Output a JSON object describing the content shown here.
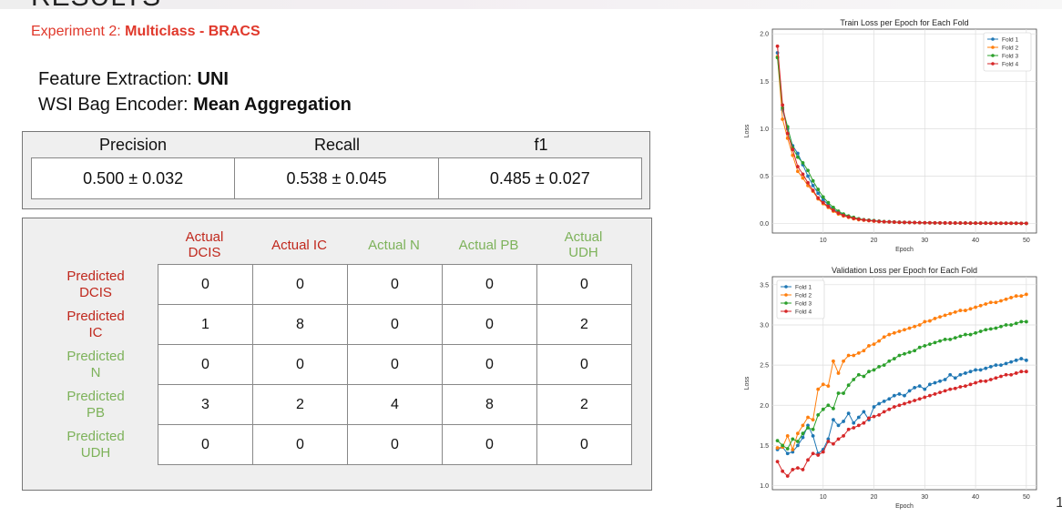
{
  "header": {
    "title": "RESULTS",
    "subtitle_prefix": "Experiment 2: ",
    "subtitle_bold": "Multiclass - BRACS"
  },
  "spec": {
    "feature_label": "Feature Extraction: ",
    "feature_value": "UNI",
    "encoder_label": "WSI Bag Encoder: ",
    "encoder_value": "Mean Aggregation"
  },
  "metrics": {
    "headers": [
      "Precision",
      "Recall",
      "f1"
    ],
    "values": [
      "0.500 ± 0.032",
      "0.538 ± 0.045",
      "0.485 ± 0.027"
    ]
  },
  "confusion": {
    "col_labels": [
      "Actual\nDCIS",
      "Actual IC",
      "Actual N",
      "Actual PB",
      "Actual\nUDH"
    ],
    "row_labels": [
      "Predicted\nDCIS",
      "Predicted\nIC",
      "Predicted\nN",
      "Predicted\nPB",
      "Predicted\nUDH"
    ],
    "label_colors": [
      "#c0281d",
      "#c0281d",
      "#7db25a",
      "#7db25a",
      "#7db25a"
    ],
    "matrix": [
      [
        0,
        0,
        0,
        0,
        0
      ],
      [
        1,
        8,
        0,
        0,
        2
      ],
      [
        0,
        0,
        0,
        0,
        0
      ],
      [
        3,
        2,
        4,
        8,
        2
      ],
      [
        0,
        0,
        0,
        0,
        0
      ]
    ]
  },
  "chart_data": [
    {
      "type": "line",
      "title": "Train Loss per Epoch for Each Fold",
      "xlabel": "Epoch",
      "ylabel": "Loss",
      "xlim": [
        0,
        52
      ],
      "ylim": [
        -0.1,
        2.05
      ],
      "xticks": [
        10,
        20,
        30,
        40,
        50
      ],
      "yticks": [
        0.0,
        0.5,
        1.0,
        1.5,
        2.0
      ],
      "grid": true,
      "legend": "top-right",
      "series": [
        {
          "name": "Fold 1",
          "color": "#1f77b4",
          "values": [
            1.8,
            1.2,
            1.0,
            0.82,
            0.74,
            0.62,
            0.5,
            0.4,
            0.32,
            0.25,
            0.2,
            0.15,
            0.12,
            0.09,
            0.07,
            0.06,
            0.05,
            0.04,
            0.035,
            0.03,
            0.025,
            0.02,
            0.018,
            0.016,
            0.014,
            0.012,
            0.011,
            0.01,
            0.009,
            0.008,
            0.008,
            0.007,
            0.007,
            0.006,
            0.006,
            0.005,
            0.005,
            0.005,
            0.004,
            0.004,
            0.004,
            0.004,
            0.003,
            0.003,
            0.003,
            0.003,
            0.003,
            0.003,
            0.002,
            0.002
          ]
        },
        {
          "name": "Fold 2",
          "color": "#ff7f0e",
          "values": [
            1.76,
            1.1,
            0.9,
            0.72,
            0.55,
            0.48,
            0.4,
            0.34,
            0.26,
            0.21,
            0.17,
            0.13,
            0.1,
            0.08,
            0.065,
            0.05,
            0.04,
            0.035,
            0.03,
            0.025,
            0.02,
            0.018,
            0.016,
            0.014,
            0.012,
            0.011,
            0.01,
            0.009,
            0.008,
            0.008,
            0.007,
            0.007,
            0.006,
            0.006,
            0.005,
            0.005,
            0.005,
            0.004,
            0.004,
            0.004,
            0.004,
            0.003,
            0.003,
            0.003,
            0.003,
            0.003,
            0.003,
            0.002,
            0.002,
            0.002
          ]
        },
        {
          "name": "Fold 3",
          "color": "#2ca02c",
          "values": [
            1.75,
            1.22,
            1.02,
            0.8,
            0.7,
            0.64,
            0.56,
            0.45,
            0.36,
            0.28,
            0.22,
            0.17,
            0.13,
            0.1,
            0.08,
            0.065,
            0.05,
            0.04,
            0.035,
            0.03,
            0.025,
            0.02,
            0.018,
            0.016,
            0.014,
            0.012,
            0.011,
            0.01,
            0.009,
            0.008,
            0.008,
            0.007,
            0.007,
            0.006,
            0.006,
            0.005,
            0.005,
            0.005,
            0.004,
            0.004,
            0.004,
            0.004,
            0.003,
            0.003,
            0.003,
            0.003,
            0.003,
            0.003,
            0.002,
            0.002
          ]
        },
        {
          "name": "Fold 4",
          "color": "#d62728",
          "values": [
            1.87,
            1.25,
            0.95,
            0.78,
            0.6,
            0.52,
            0.43,
            0.35,
            0.27,
            0.22,
            0.18,
            0.14,
            0.11,
            0.085,
            0.07,
            0.055,
            0.045,
            0.038,
            0.032,
            0.027,
            0.022,
            0.019,
            0.017,
            0.015,
            0.013,
            0.012,
            0.011,
            0.01,
            0.009,
            0.008,
            0.008,
            0.007,
            0.007,
            0.006,
            0.006,
            0.005,
            0.005,
            0.005,
            0.004,
            0.004,
            0.004,
            0.004,
            0.003,
            0.003,
            0.003,
            0.003,
            0.003,
            0.003,
            0.002,
            0.002
          ]
        }
      ]
    },
    {
      "type": "line",
      "title": "Validation Loss per Epoch for Each Fold",
      "xlabel": "Epoch",
      "ylabel": "Loss",
      "xlim": [
        0,
        52
      ],
      "ylim": [
        0.95,
        3.6
      ],
      "xticks": [
        10,
        20,
        30,
        40,
        50
      ],
      "yticks": [
        1.0,
        1.5,
        2.0,
        2.5,
        3.0,
        3.5
      ],
      "grid": true,
      "legend": "top-left",
      "series": [
        {
          "name": "Fold 1",
          "color": "#1f77b4",
          "values": [
            1.45,
            1.48,
            1.4,
            1.42,
            1.5,
            1.6,
            1.75,
            1.62,
            1.4,
            1.45,
            1.58,
            1.82,
            1.75,
            1.8,
            1.9,
            1.78,
            1.85,
            1.92,
            1.82,
            1.98,
            2.02,
            2.05,
            2.08,
            2.12,
            2.14,
            2.12,
            2.18,
            2.22,
            2.24,
            2.2,
            2.26,
            2.28,
            2.3,
            2.32,
            2.38,
            2.34,
            2.38,
            2.4,
            2.42,
            2.44,
            2.44,
            2.46,
            2.48,
            2.5,
            2.5,
            2.52,
            2.54,
            2.56,
            2.58,
            2.56
          ]
        },
        {
          "name": "Fold 2",
          "color": "#ff7f0e",
          "values": [
            1.47,
            1.48,
            1.62,
            1.45,
            1.65,
            1.75,
            1.85,
            1.82,
            2.2,
            2.26,
            2.24,
            2.55,
            2.4,
            2.55,
            2.62,
            2.62,
            2.65,
            2.68,
            2.74,
            2.76,
            2.8,
            2.85,
            2.88,
            2.9,
            2.92,
            2.94,
            2.96,
            2.98,
            3.0,
            3.04,
            3.05,
            3.08,
            3.1,
            3.12,
            3.14,
            3.16,
            3.18,
            3.18,
            3.2,
            3.22,
            3.24,
            3.26,
            3.28,
            3.28,
            3.3,
            3.32,
            3.34,
            3.36,
            3.36,
            3.38
          ]
        },
        {
          "name": "Fold 3",
          "color": "#2ca02c",
          "values": [
            1.56,
            1.5,
            1.46,
            1.58,
            1.55,
            1.65,
            1.72,
            1.7,
            1.88,
            1.95,
            2.0,
            1.96,
            2.15,
            2.15,
            2.25,
            2.32,
            2.38,
            2.36,
            2.42,
            2.44,
            2.48,
            2.5,
            2.55,
            2.58,
            2.62,
            2.64,
            2.66,
            2.68,
            2.72,
            2.74,
            2.76,
            2.78,
            2.8,
            2.82,
            2.82,
            2.84,
            2.86,
            2.88,
            2.88,
            2.9,
            2.92,
            2.94,
            2.95,
            2.96,
            2.98,
            3.0,
            3.0,
            3.02,
            3.04,
            3.04
          ]
        },
        {
          "name": "Fold 4",
          "color": "#d62728",
          "values": [
            1.3,
            1.18,
            1.12,
            1.2,
            1.22,
            1.2,
            1.32,
            1.4,
            1.38,
            1.42,
            1.55,
            1.52,
            1.58,
            1.62,
            1.7,
            1.72,
            1.75,
            1.78,
            1.84,
            1.86,
            1.88,
            1.92,
            1.95,
            1.98,
            2.0,
            2.02,
            2.04,
            2.06,
            2.08,
            2.1,
            2.12,
            2.14,
            2.16,
            2.18,
            2.2,
            2.21,
            2.23,
            2.24,
            2.26,
            2.28,
            2.3,
            2.3,
            2.32,
            2.34,
            2.36,
            2.38,
            2.38,
            2.4,
            2.42,
            2.42
          ]
        }
      ]
    }
  ],
  "page_number": "1"
}
